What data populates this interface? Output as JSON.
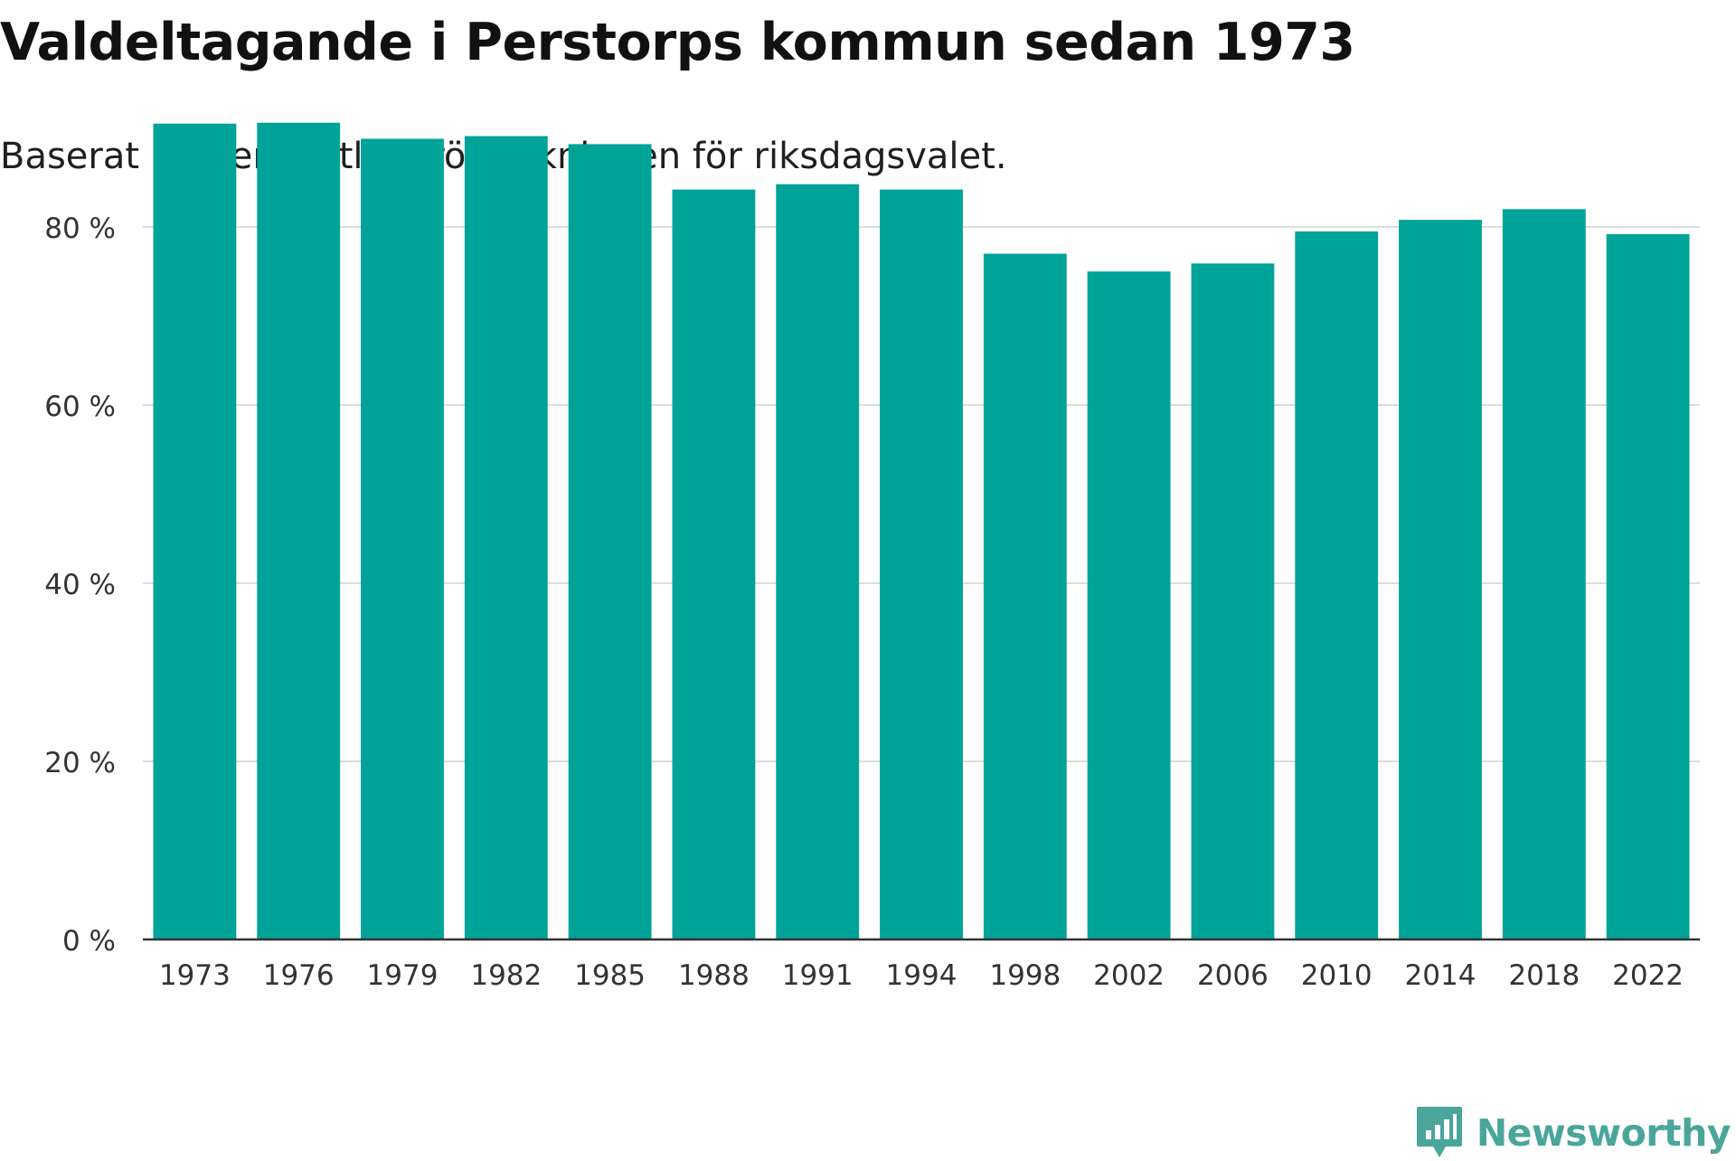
{
  "title": "Valdeltagande i Perstorps kommun sedan 1973",
  "subtitle": "Baserat på den slutliga rösträkningen för riksdagsvalet.",
  "brand": {
    "name": "Newsworthy",
    "icon": "newsworthy-chart-bubble-icon",
    "color": "#4aa59a"
  },
  "colors": {
    "bar": "#00a398",
    "grid": "#dddddd",
    "axis": "#333333"
  },
  "chart_data": {
    "type": "bar",
    "categories": [
      "1973",
      "1976",
      "1979",
      "1982",
      "1985",
      "1988",
      "1991",
      "1994",
      "1998",
      "2002",
      "2006",
      "2010",
      "2014",
      "2018",
      "2022"
    ],
    "values": [
      91.6,
      91.7,
      89.9,
      90.2,
      89.3,
      84.2,
      84.8,
      84.2,
      77.0,
      75.0,
      75.9,
      79.5,
      80.8,
      82.0,
      79.2
    ],
    "yticks": [
      0,
      20,
      40,
      60,
      80
    ],
    "ytick_labels": [
      "0 %",
      "20 %",
      "40 %",
      "60 %",
      "80 %"
    ],
    "ylim": [
      0,
      92
    ],
    "grid": true,
    "xlabel": "",
    "ylabel": ""
  }
}
